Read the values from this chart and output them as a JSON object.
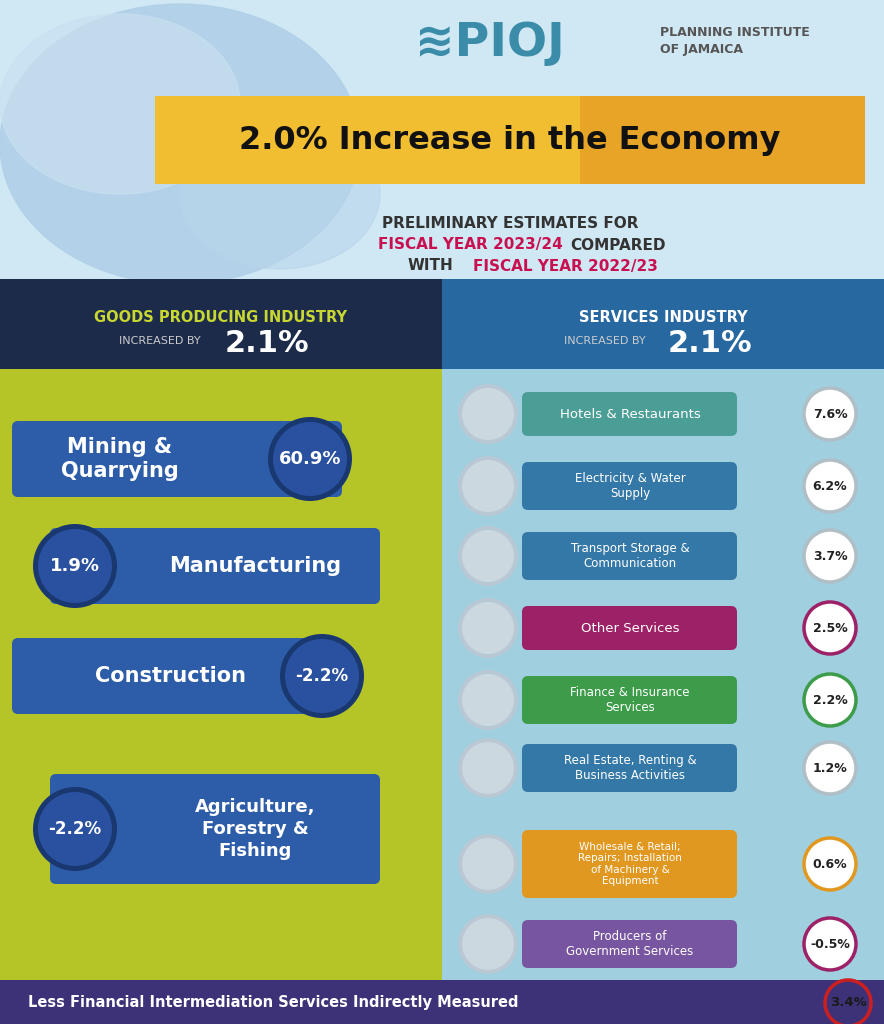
{
  "title_main": "2.0% Increase in the Economy",
  "title_sub_line1": "PRELIMINARY ESTIMATES FOR",
  "title_sub_fy1": "FISCAL YEAR 2023/24",
  "title_sub_mid": "COMPARED",
  "title_sub_line2": "WITH ",
  "title_sub_fy2": "FISCAL YEAR 2022/23",
  "pioj_text": "PIOJ",
  "pioj_sub": "PLANNING INSTITUTE\nOF JAMAICA",
  "goods_header": "GOODS PRODUCING INDUSTRY",
  "goods_subheader": "INCREASED BY",
  "goods_pct": "2.1%",
  "services_header": "SERVICES INDUSTRY",
  "services_subheader": "INCREASED BY",
  "services_pct": "2.1%",
  "goods_items": [
    {
      "label": "Mining &\nQuarrying",
      "value": "60.9%",
      "circle_left": false
    },
    {
      "label": "Manufacturing",
      "value": "1.9%",
      "circle_left": true
    },
    {
      "label": "Construction",
      "value": "-2.2%",
      "circle_left": false
    },
    {
      "label": "Agriculture,\nForestry &\nFishing",
      "value": "-2.2%",
      "circle_left": true
    }
  ],
  "services_items": [
    {
      "label": "Hotels & Restaurants",
      "value": "7.6%",
      "bar_color": "#4a9e96",
      "circle_color": "#b0bec5"
    },
    {
      "label": "Electricity & Water\nSupply",
      "value": "6.2%",
      "bar_color": "#3478a8",
      "circle_color": "#b0bec5"
    },
    {
      "label": "Transport Storage &\nCommunication",
      "value": "3.7%",
      "bar_color": "#3478a8",
      "circle_color": "#b0bec5"
    },
    {
      "label": "Other Services",
      "value": "2.5%",
      "bar_color": "#9c2166",
      "circle_color": "#9c2166"
    },
    {
      "label": "Finance & Insurance\nServices",
      "value": "2.2%",
      "bar_color": "#3d9c4a",
      "circle_color": "#3d9c4a"
    },
    {
      "label": "Real Estate, Renting &\nBusiness Activities",
      "value": "1.2%",
      "bar_color": "#3478a8",
      "circle_color": "#b0bec5"
    },
    {
      "label": "Wholesale & Retail;\nRepairs; Installation\nof Machinery &\nEquipment",
      "value": "0.6%",
      "bar_color": "#e09820",
      "circle_color": "#e09820"
    },
    {
      "label": "Producers of\nGovernment Services",
      "value": "-0.5%",
      "bar_color": "#7855a0",
      "circle_color": "#9c2166"
    }
  ],
  "footer_text": "Less Financial Intermediation Services Indirectly Measured",
  "footer_value": "3.4%",
  "footer_bg": "#3d3278",
  "footer_circle_color": "#cc2020",
  "bg_goods": "#b5c527",
  "bg_services": "#a0cfe0",
  "header_goods_bg": "#1c2b4a",
  "header_services_bg": "#2868a0",
  "yellow_banner_color": "#f0be30",
  "yellow_banner_right": "#e09020",
  "sub_fy_color": "#c81050",
  "goods_bar_color": "#2d5ca8",
  "goods_circle_dark": "#1a3870",
  "goods_circle_light": "#2a50a0",
  "top_bg": "#ffffff",
  "map_bg": "#d0e8f4",
  "map_land": "#b0d0e8"
}
